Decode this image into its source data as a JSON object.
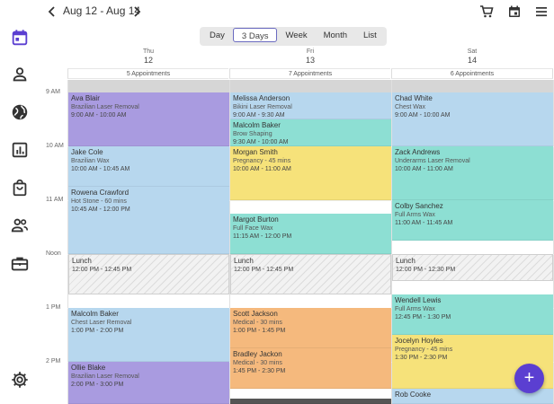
{
  "header": {
    "date_range": "Aug 12 - Aug 14"
  },
  "view_tabs": [
    {
      "label": "Day",
      "active": false
    },
    {
      "label": "3 Days",
      "active": true
    },
    {
      "label": "Week",
      "active": false
    },
    {
      "label": "Month",
      "active": false
    },
    {
      "label": "List",
      "active": false
    }
  ],
  "days": [
    {
      "dow": "Thu",
      "num": "12",
      "appointments": "5 Appointments"
    },
    {
      "dow": "Fri",
      "num": "13",
      "appointments": "7 Appointments"
    },
    {
      "dow": "Sat",
      "num": "14",
      "appointments": "6 Appointments"
    }
  ],
  "times": [
    "9 AM",
    "10 AM",
    "11 AM",
    "Noon",
    "1 PM",
    "2 PM"
  ],
  "events": {
    "d0": [
      {
        "name": "Ava Blair",
        "service": "Brazilian Laser Removal",
        "time": "9:00 AM - 10:00 AM"
      },
      {
        "name": "Jake Cole",
        "service": "Brazilian Wax",
        "time": "10:00 AM - 10:45 AM"
      },
      {
        "name": "Rowena Crawford",
        "service": "Hot Stone - 60 mins",
        "time": "10:45 AM - 12:00 PM"
      },
      {
        "name": "Lunch",
        "service": "",
        "time": "12:00 PM - 12:45 PM"
      },
      {
        "name": "Malcolm Baker",
        "service": "Chest Laser Removal",
        "time": "1:00 PM - 2:00 PM"
      },
      {
        "name": "Ollie Blake",
        "service": "Brazilian Laser Removal",
        "time": "2:00 PM - 3:00 PM"
      }
    ],
    "d1": [
      {
        "name": "Melissa Anderson",
        "service": "Bikini Laser Removal",
        "time": "9:00 AM - 9:30 AM"
      },
      {
        "name": "Malcolm Baker",
        "service": "Brow Shaping",
        "time": "9:30 AM - 10:00 AM"
      },
      {
        "name": "Morgan Smith",
        "service": "Pregnancy - 45 mins",
        "time": "10:00 AM - 11:00 AM"
      },
      {
        "name": "Margot Burton",
        "service": "Full Face Wax",
        "time": "11:15 AM - 12:00 PM"
      },
      {
        "name": "Lunch",
        "service": "",
        "time": "12:00 PM - 12:45 PM"
      },
      {
        "name": "Scott Jackson",
        "service": "Medical - 30 mins",
        "time": "1:00 PM - 1:45 PM"
      },
      {
        "name": "Bradley Jackon",
        "service": "Medical - 30 mins",
        "time": "1:45 PM - 2:30 PM"
      }
    ],
    "d2": [
      {
        "name": "Chad White",
        "service": "Chest Wax",
        "time": "9:00 AM - 10:00 AM"
      },
      {
        "name": "Zack Andrews",
        "service": "Underarms Laser Removal",
        "time": "10:00 AM - 11:00 AM"
      },
      {
        "name": "Colby Sanchez",
        "service": "Full Arms Wax",
        "time": "11:00 AM - 11:45 AM"
      },
      {
        "name": "Lunch",
        "service": "",
        "time": "12:00 PM - 12:30 PM"
      },
      {
        "name": "Wendell Lewis",
        "service": "Full Arms Wax",
        "time": "12:45 PM - 1:30 PM"
      },
      {
        "name": "Jocelyn Hoyles",
        "service": "Pregnancy - 45 mins",
        "time": "1:30 PM - 2:30 PM"
      },
      {
        "name": "Rob Cooke",
        "service": "",
        "time": ""
      }
    ]
  },
  "colors": {
    "accent": "#5b3fd1",
    "purple": "#a99be0",
    "blue": "#b7d7ee",
    "teal": "#8ddfd3",
    "yellow": "#f6e27a",
    "orange": "#f5b97d"
  },
  "fab": {
    "label": "+"
  }
}
